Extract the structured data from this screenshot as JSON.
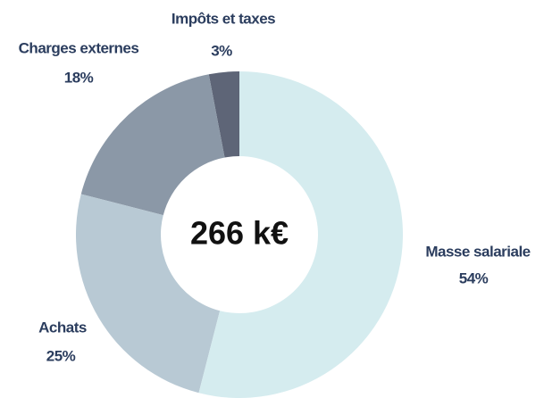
{
  "chart_data": {
    "type": "donut",
    "center_label": "266 k€",
    "categories": [
      "Masse salariale",
      "Achats",
      "Charges externes",
      "Impôts et taxes"
    ],
    "values": [
      54,
      25,
      18,
      3
    ],
    "value_labels": [
      "54%",
      "25%",
      "18%",
      "3%"
    ],
    "colors": [
      "#d5ecef",
      "#b8c9d4",
      "#8b98a7",
      "#5e6577"
    ]
  }
}
